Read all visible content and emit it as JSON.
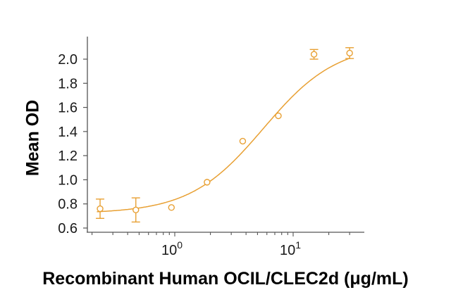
{
  "chart_data": {
    "type": "scatter",
    "title": "",
    "xlabel": "Recombinant Human OCIL/CLEC2d (μg/mL)",
    "ylabel": "Mean OD",
    "xscale": "log",
    "xlim": [
      0.18,
      40
    ],
    "ylim": [
      0.58,
      2.22
    ],
    "x_tick_labels": [
      "10^0",
      "10^1"
    ],
    "y_ticks": [
      0.6,
      0.8,
      1.0,
      1.2,
      1.4,
      1.6,
      1.8,
      2.0
    ],
    "y_tick_labels": [
      "0.6",
      "0.8",
      "1.0",
      "1.2",
      "1.4",
      "1.6",
      "1.8",
      "2.0"
    ],
    "grid": false,
    "legend": null,
    "color": "#E8A033",
    "series": [
      {
        "name": "Mean OD",
        "x": [
          0.234,
          0.469,
          0.9375,
          1.875,
          3.75,
          7.5,
          15,
          30
        ],
        "y": [
          0.76,
          0.75,
          0.77,
          0.98,
          1.32,
          1.53,
          2.04,
          2.05
        ],
        "error": [
          0.08,
          0.1,
          0.0,
          0.0,
          0.0,
          0.0,
          0.04,
          0.045
        ]
      }
    ],
    "fit": {
      "model": "4PL",
      "bottom": 0.72,
      "top": 2.13,
      "ec50": 5.6,
      "hill": 1.4
    }
  },
  "labels": {
    "ylabel": "Mean OD",
    "xlabel": "Recombinant Human OCIL/CLEC2d (μg/mL)"
  }
}
